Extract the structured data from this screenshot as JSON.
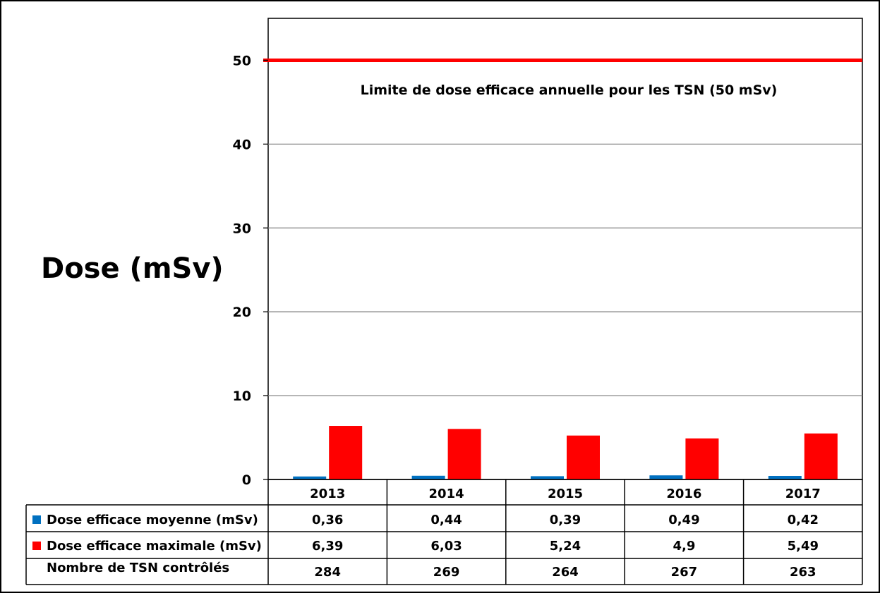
{
  "chart_data": {
    "type": "bar",
    "ylabel": "Dose (mSv)",
    "ylim": [
      0,
      55
    ],
    "yticks": [
      0,
      10,
      20,
      30,
      40,
      50
    ],
    "grid": true,
    "categories": [
      "2013",
      "2014",
      "2015",
      "2016",
      "2017"
    ],
    "series": [
      {
        "name": "Dose efficace moyenne (mSv)",
        "values": [
          0.36,
          0.44,
          0.39,
          0.49,
          0.42
        ],
        "labels": [
          "0,36",
          "0,44",
          "0,39",
          "0,49",
          "0,42"
        ],
        "color": "#0070C0"
      },
      {
        "name": "Dose efficace maximale (mSv)",
        "values": [
          6.39,
          6.03,
          5.24,
          4.9,
          5.49
        ],
        "labels": [
          "6,39",
          "6,03",
          "5,24",
          "4,9",
          "5,49"
        ],
        "color": "#FF0000"
      }
    ],
    "table_extra_row": {
      "name": "Nombre de TSN contrôlés",
      "labels": [
        "284",
        "269",
        "264",
        "267",
        "263"
      ]
    },
    "reference_line": {
      "value": 50,
      "color": "#FF0000",
      "label": "Limite de dose efficace annuelle pour les TSN (50 mSv)"
    },
    "legend": "data-table"
  }
}
